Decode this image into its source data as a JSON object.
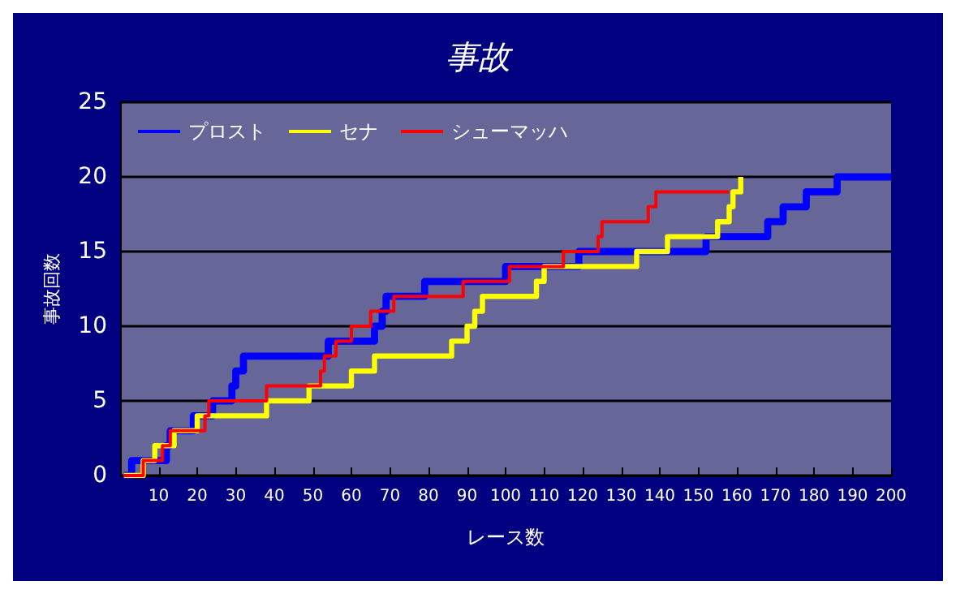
{
  "chart_data": {
    "type": "step",
    "title": "事故",
    "xlabel": "レース数",
    "ylabel": "事故回数",
    "xlim": [
      0,
      200
    ],
    "xticks": [
      10,
      20,
      30,
      40,
      50,
      60,
      70,
      80,
      90,
      100,
      110,
      120,
      130,
      140,
      150,
      160,
      170,
      180,
      190,
      200
    ],
    "ylim": [
      0,
      25
    ],
    "yticks": [
      0,
      5,
      10,
      15,
      20,
      25
    ],
    "grid": "y",
    "legend": "top left",
    "marker": "none",
    "line_style": "solid",
    "series": [
      {
        "name": "プロスト",
        "color": "#0000ff",
        "x": [
          1,
          3,
          12,
          13,
          19,
          24,
          29,
          30,
          32,
          54,
          66,
          68,
          69,
          79,
          100,
          119,
          152,
          168,
          172,
          178,
          186,
          200
        ],
        "values": [
          0,
          1,
          2,
          3,
          4,
          5,
          6,
          7,
          8,
          9,
          10,
          11,
          12,
          13,
          14,
          15,
          16,
          17,
          18,
          19,
          20,
          20
        ]
      },
      {
        "name": "セナ",
        "color": "#ffff00",
        "x": [
          1,
          6,
          9,
          14,
          20,
          38,
          49,
          60,
          66,
          86,
          90,
          92,
          94,
          108,
          110,
          134,
          142,
          155,
          158,
          159,
          161
        ],
        "values": [
          0,
          1,
          2,
          3,
          4,
          5,
          6,
          7,
          8,
          9,
          10,
          11,
          12,
          13,
          14,
          15,
          16,
          17,
          18,
          19,
          20
        ]
      },
      {
        "name": "シューマッハ",
        "color": "#ff0000",
        "x": [
          1,
          6,
          11,
          13,
          22,
          23,
          38,
          52,
          53,
          56,
          60,
          65,
          71,
          89,
          101,
          115,
          124,
          125,
          137,
          139,
          158
        ],
        "values": [
          0,
          1,
          2,
          3,
          4,
          5,
          6,
          7,
          8,
          9,
          10,
          11,
          12,
          13,
          14,
          15,
          16,
          17,
          18,
          19,
          19
        ]
      }
    ]
  }
}
